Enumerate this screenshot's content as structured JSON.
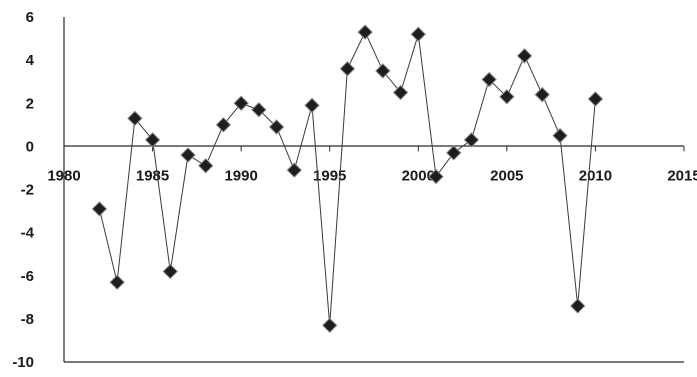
{
  "chart_data": {
    "type": "scatter",
    "title": "",
    "xlabel": "",
    "ylabel": "",
    "xlim": [
      1980,
      2015
    ],
    "ylim": [
      -10,
      6
    ],
    "xticks": [
      "1980",
      "1985",
      "1990",
      "1995",
      "2000",
      "2005",
      "2010",
      "2015"
    ],
    "yticks": [
      "6",
      "4",
      "2",
      "0",
      "-2",
      "-4",
      "-6",
      "-8",
      "-10"
    ],
    "grid": false,
    "marker": "diamond",
    "line": true,
    "colors": {
      "line": "#3a3a3a",
      "marker": "#1e1e1e",
      "axis": "#2a2a2a"
    },
    "series": [
      {
        "x": [
          1982,
          1983,
          1984,
          1985,
          1986,
          1987,
          1988,
          1989,
          1990,
          1991,
          1992,
          1993,
          1994,
          1995,
          1996,
          1997,
          1998,
          1999,
          2000,
          2001,
          2002,
          2003,
          2004,
          2005,
          2006,
          2007,
          2008,
          2009,
          2010
        ],
        "y": [
          -2.9,
          -6.3,
          1.3,
          0.3,
          -5.8,
          -0.4,
          -0.9,
          1.0,
          2.0,
          1.7,
          0.9,
          -1.1,
          1.9,
          -8.3,
          3.6,
          5.3,
          3.5,
          2.5,
          5.2,
          -1.4,
          -0.3,
          0.3,
          3.1,
          2.3,
          4.2,
          2.4,
          0.5,
          -7.4,
          2.2
        ]
      }
    ]
  }
}
